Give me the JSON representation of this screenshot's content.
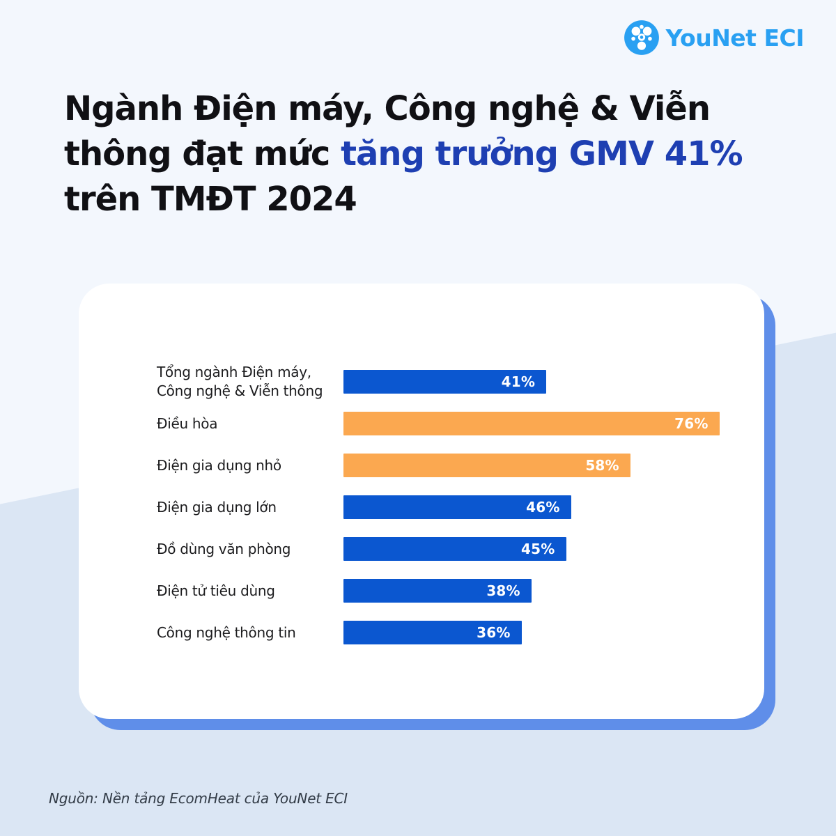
{
  "logo": {
    "text": "YouNet ECI",
    "color": "#29A0F2",
    "icon": "younet-dots-circle-icon"
  },
  "title": {
    "line1": "Ngành Điện máy, Công nghệ & Viễn",
    "line2_prefix": "thông đạt mức ",
    "line2_accent": "tăng trưởng GMV 41%",
    "line3": "trên TMĐT 2024",
    "accent_color": "#1E3FB2"
  },
  "chart_data": {
    "type": "bar",
    "orientation": "horizontal",
    "title": "Ngành Điện máy, Công nghệ & Viễn thông đạt mức tăng trưởng GMV 41% trên TMĐT 2024",
    "unit": "%",
    "xlim": [
      0,
      80
    ],
    "grid": false,
    "legend": false,
    "categories": [
      "Tổng ngành Điện máy,\nCông nghệ & Viễn thông",
      "Điều hòa",
      "Điện gia dụng nhỏ",
      "Điện gia dụng lớn",
      "Đồ dùng văn phòng",
      "Điện tử tiêu dùng",
      "Công nghệ thông tin"
    ],
    "values": [
      41,
      76,
      58,
      46,
      45,
      38,
      36
    ],
    "value_labels": [
      "41%",
      "76%",
      "58%",
      "46%",
      "45%",
      "38%",
      "36%"
    ],
    "colors": [
      "#0B57D0",
      "#FBA850",
      "#FBA850",
      "#0B57D0",
      "#0B57D0",
      "#0B57D0",
      "#0B57D0"
    ],
    "base_color": "#0B57D0",
    "highlight_color": "#FBA850",
    "highlighted_categories": [
      "Điều hòa",
      "Điện gia dụng nhỏ"
    ]
  },
  "footer": {
    "source": "Nguồn: Nền tảng EcomHeat của YouNet ECI"
  },
  "theme": {
    "background_top": "#F3F7FD",
    "background_band": "#DBE6F4",
    "card_background": "#FFFFFF",
    "card_shadow": "#5F8EE9"
  }
}
